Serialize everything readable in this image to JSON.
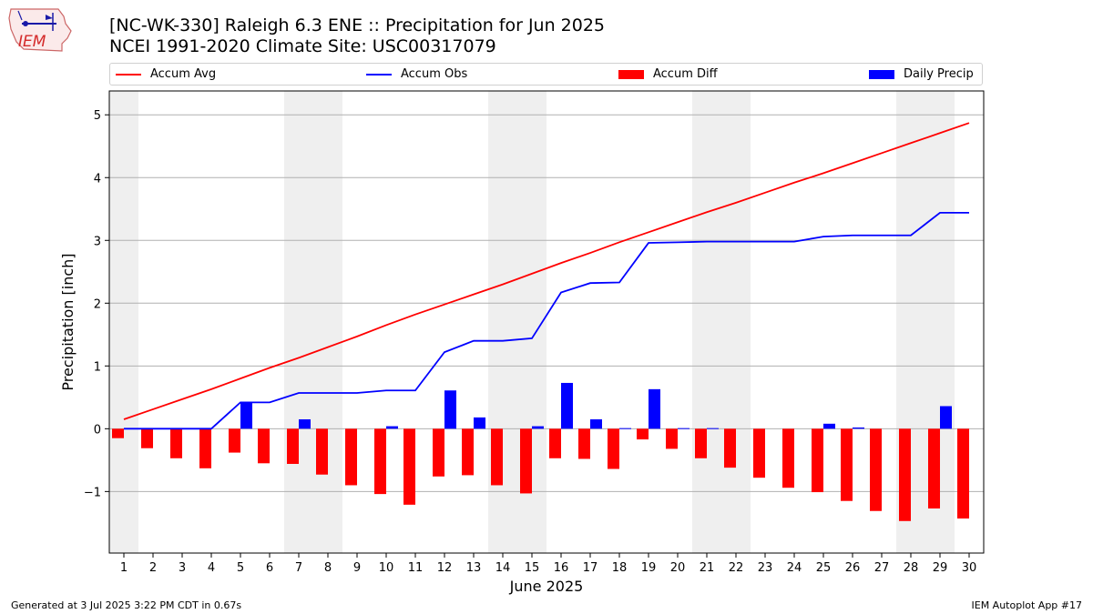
{
  "header": {
    "logo_text": "IEM",
    "title_line1": "[NC-WK-330] Raleigh 6.3 ENE :: Precipitation for Jun 2025",
    "title_line2": "NCEI 1991-2020 Climate Site: USC00317079"
  },
  "legend": {
    "items": [
      {
        "label": "Accum Avg",
        "kind": "line",
        "color": "#ff0000"
      },
      {
        "label": "Accum Obs",
        "kind": "line",
        "color": "#0000ff"
      },
      {
        "label": "Accum Diff",
        "kind": "bar",
        "color": "#ff0000"
      },
      {
        "label": "Daily Precip",
        "kind": "bar",
        "color": "#0000ff"
      }
    ]
  },
  "footer": {
    "left": "Generated at 3 Jul 2025 3:22 PM CDT in 0.67s",
    "right": "IEM Autoplot App #17"
  },
  "chart_data": {
    "type": "bar",
    "xlabel": "June 2025",
    "ylabel": "Precipitation [inch]",
    "x": [
      1,
      2,
      3,
      4,
      5,
      6,
      7,
      8,
      9,
      10,
      11,
      12,
      13,
      14,
      15,
      16,
      17,
      18,
      19,
      20,
      21,
      22,
      23,
      24,
      25,
      26,
      27,
      28,
      29,
      30
    ],
    "ylim": [
      -1.98,
      5.38
    ],
    "yticks": [
      -1,
      0,
      1,
      2,
      3,
      4,
      5
    ],
    "ytick_labels": [
      "−1",
      "0",
      "1",
      "2",
      "3",
      "4",
      "5"
    ],
    "weekend_days": [
      1,
      7,
      8,
      14,
      15,
      21,
      22,
      28,
      29
    ],
    "grid": "horizontal",
    "legend_position": "top",
    "series": [
      {
        "name": "Accum Avg",
        "type": "line",
        "color": "#ff0000",
        "values": [
          0.15,
          0.31,
          0.47,
          0.63,
          0.8,
          0.97,
          1.13,
          1.3,
          1.47,
          1.65,
          1.82,
          1.98,
          2.14,
          2.3,
          2.47,
          2.64,
          2.8,
          2.97,
          3.13,
          3.29,
          3.45,
          3.6,
          3.76,
          3.92,
          4.07,
          4.23,
          4.39,
          4.55,
          4.71,
          4.87
        ]
      },
      {
        "name": "Accum Obs",
        "type": "line",
        "color": "#0000ff",
        "values": [
          0.0,
          0.0,
          0.0,
          0.0,
          0.42,
          0.42,
          0.57,
          0.57,
          0.57,
          0.61,
          0.61,
          1.22,
          1.4,
          1.4,
          1.44,
          2.17,
          2.32,
          2.33,
          2.96,
          2.97,
          2.98,
          2.98,
          2.98,
          2.98,
          3.06,
          3.08,
          3.08,
          3.08,
          3.44,
          3.44
        ]
      },
      {
        "name": "Accum Diff",
        "type": "bar",
        "color": "#ff0000",
        "values": [
          -0.15,
          -0.31,
          -0.47,
          -0.63,
          -0.38,
          -0.55,
          -0.56,
          -0.73,
          -0.9,
          -1.04,
          -1.21,
          -0.76,
          -0.74,
          -0.9,
          -1.03,
          -0.47,
          -0.48,
          -0.64,
          -0.17,
          -0.32,
          -0.47,
          -0.62,
          -0.78,
          -0.94,
          -1.01,
          -1.15,
          -1.31,
          -1.47,
          -1.27,
          -1.43
        ]
      },
      {
        "name": "Daily Precip",
        "type": "bar",
        "color": "#0000ff",
        "values": [
          0.0,
          0.0,
          0.0,
          0.0,
          0.42,
          0.0,
          0.15,
          0.0,
          0.0,
          0.04,
          0.0,
          0.61,
          0.18,
          0.0,
          0.04,
          0.73,
          0.15,
          0.01,
          0.63,
          0.01,
          0.01,
          0.0,
          0.0,
          0.0,
          0.08,
          0.02,
          0.0,
          0.0,
          0.36,
          0.0
        ]
      }
    ]
  }
}
